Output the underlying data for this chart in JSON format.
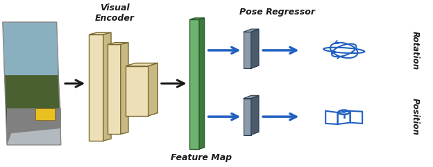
{
  "bg_color": "#ffffff",
  "fig_width": 6.24,
  "fig_height": 2.42,
  "dpi": 100,
  "labels": {
    "visual_encoder": "Visual\nEncoder",
    "feature_map": "Feature Map",
    "pose_regressor": "Pose Regressor",
    "rotation": "Rotation",
    "position": "Position"
  },
  "colors": {
    "cream_face": "#EDE0B8",
    "cream_top": "#EDE0B8",
    "cream_side": "#C8B882",
    "cream_edge": "#7A6830",
    "green_face": "#6DB36D",
    "green_top": "#6DB36D",
    "green_side": "#3E7A3E",
    "green_edge": "#2A5A2A",
    "slate_face": "#8A9BAB",
    "slate_top": "#8A9BAB",
    "slate_side": "#4A5A6A",
    "slate_edge": "#2A3A4A",
    "arrow_black": "#1A1A1A",
    "arrow_blue": "#2060C0",
    "text_dark": "#1A1A1A"
  }
}
